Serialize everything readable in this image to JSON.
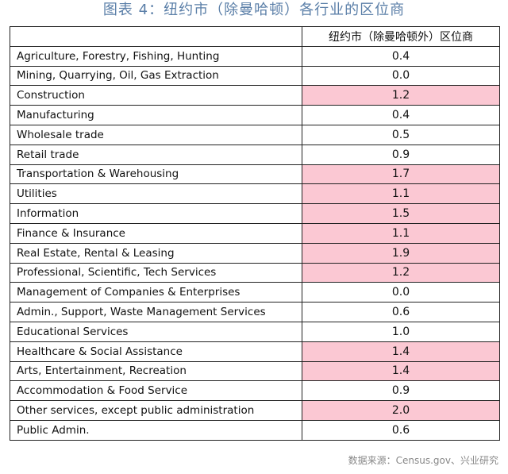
{
  "title": "图表 4：纽约市（除曼哈顿）各行业的区位商",
  "table": {
    "header_left": "",
    "header_right": "纽约市（除曼哈顿外）区位商",
    "highlight_color": "#fbc8d3",
    "rows": [
      {
        "industry": "Agriculture, Forestry, Fishing, Hunting",
        "value": "0.4",
        "highlight": false
      },
      {
        "industry": "Mining, Quarrying, Oil, Gas Extraction",
        "value": "0.0",
        "highlight": false
      },
      {
        "industry": "Construction",
        "value": "1.2",
        "highlight": true
      },
      {
        "industry": "Manufacturing",
        "value": "0.4",
        "highlight": false
      },
      {
        "industry": "Wholesale trade",
        "value": "0.5",
        "highlight": false
      },
      {
        "industry": "Retail trade",
        "value": "0.9",
        "highlight": false
      },
      {
        "industry": "Transportation & Warehousing",
        "value": "1.7",
        "highlight": true
      },
      {
        "industry": "Utilities",
        "value": "1.1",
        "highlight": true
      },
      {
        "industry": "Information",
        "value": "1.5",
        "highlight": true
      },
      {
        "industry": "Finance & Insurance",
        "value": "1.1",
        "highlight": true
      },
      {
        "industry": "Real Estate, Rental & Leasing",
        "value": "1.9",
        "highlight": true
      },
      {
        "industry": "Professional, Scientific, Tech Services",
        "value": "1.2",
        "highlight": true
      },
      {
        "industry": "Management of Companies & Enterprises",
        "value": "0.0",
        "highlight": false
      },
      {
        "industry": "Admin., Support, Waste Management Services",
        "value": "0.6",
        "highlight": false
      },
      {
        "industry": "Educational Services",
        "value": "1.0",
        "highlight": false
      },
      {
        "industry": "Healthcare & Social Assistance",
        "value": "1.4",
        "highlight": true
      },
      {
        "industry": "Arts, Entertainment, Recreation",
        "value": "1.4",
        "highlight": true
      },
      {
        "industry": "Accommodation & Food Service",
        "value": "0.9",
        "highlight": false
      },
      {
        "industry": "Other services, except public administration",
        "value": "2.0",
        "highlight": true
      },
      {
        "industry": "Public Admin.",
        "value": "0.6",
        "highlight": false
      }
    ]
  },
  "source": "数据来源：Census.gov、兴业研究"
}
